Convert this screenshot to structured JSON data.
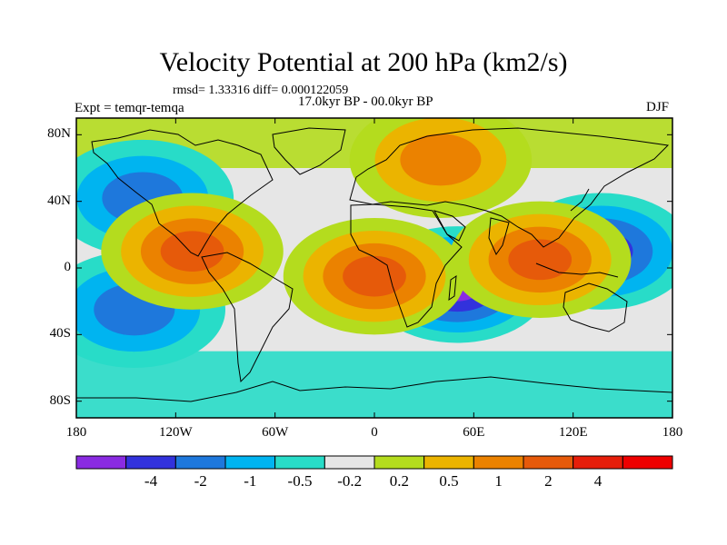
{
  "title": "Velocity Potential at 200 hPa (km2/s)",
  "stats_line": "rmsd= 1.33316 diff= 0.000122059",
  "period_line": "17.0kyr BP - 00.0kyr BP",
  "experiment_label": "Expt = temqr-temqa",
  "season_label": "DJF",
  "map": {
    "projection": "cylindrical-equidistant",
    "lon_range": [
      -180,
      180
    ],
    "lat_range": [
      -90,
      90
    ],
    "lat_ticks": [
      {
        "lat": 80,
        "label": "80N"
      },
      {
        "lat": 40,
        "label": "40N"
      },
      {
        "lat": 0,
        "label": "0"
      },
      {
        "lat": -40,
        "label": "40S"
      },
      {
        "lat": -80,
        "label": "80S"
      }
    ],
    "lon_ticks": [
      {
        "lon": -180,
        "label": "180"
      },
      {
        "lon": -120,
        "label": "120W"
      },
      {
        "lon": -60,
        "label": "60W"
      },
      {
        "lon": 0,
        "label": "0"
      },
      {
        "lon": 60,
        "label": "60E"
      },
      {
        "lon": 120,
        "label": "120E"
      },
      {
        "lon": 180,
        "label": "180"
      }
    ],
    "field_features": [
      {
        "name": "indian-ocean-minimum",
        "lon": 50,
        "lat": -10,
        "value": -4.5
      },
      {
        "name": "western-pacific-minimum",
        "lon": 137,
        "lat": 10,
        "value": -2.5
      },
      {
        "name": "north-pacific-minimum",
        "lon": -140,
        "lat": 42,
        "value": -1.5
      },
      {
        "name": "south-pacific-minimum",
        "lon": -145,
        "lat": -25,
        "value": -1.2
      },
      {
        "name": "south-atlantic-maximum",
        "lon": 0,
        "lat": -5,
        "value": 3.5
      },
      {
        "name": "maritime-continent-maximum",
        "lon": 100,
        "lat": 5,
        "value": 3.5
      },
      {
        "name": "central-america-maximum",
        "lon": -110,
        "lat": 10,
        "value": 2.0
      },
      {
        "name": "eurasia-maximum",
        "lon": 40,
        "lat": 65,
        "value": 1.5
      }
    ]
  },
  "colorbar": {
    "colors": [
      "#8a2be2",
      "#3232dc",
      "#1e78dc",
      "#00b4f0",
      "#28dcc8",
      "#e6e6e6",
      "#b4dc1e",
      "#ebb400",
      "#eb8200",
      "#e65a0a",
      "#e61e0a",
      "#ee0000"
    ],
    "labels": [
      "-4",
      "-2",
      "-1",
      "-0.5",
      "-0.2",
      "0.2",
      "0.5",
      "1",
      "2",
      "4"
    ]
  }
}
